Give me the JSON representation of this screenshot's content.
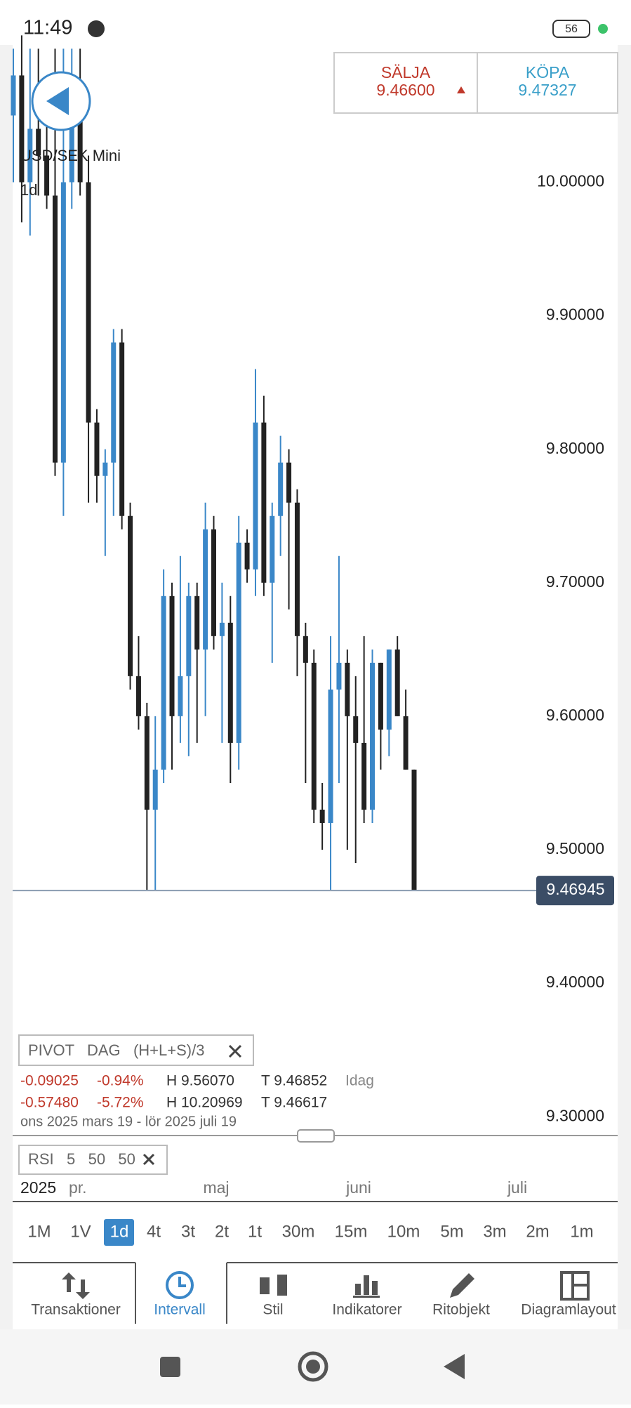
{
  "status_bar": {
    "time": "11:49",
    "battery": "56"
  },
  "quote": {
    "sell_label": "SÄLJA",
    "sell": "9.46600",
    "buy_label": "KÖPA",
    "buy": "9.47327"
  },
  "instrument": {
    "name": "USD/SEK Mini",
    "interval": "1d"
  },
  "chart_data": {
    "type": "candlestick",
    "open": [
      10.05,
      10.08,
      10.0,
      10.04,
      10.02,
      9.99,
      9.79,
      10.0,
      10.07,
      10.0,
      9.82,
      9.78,
      9.79,
      9.88,
      9.75,
      9.63,
      9.6,
      9.53,
      9.56,
      9.69,
      9.6,
      9.63,
      9.69,
      9.65,
      9.74,
      9.66,
      9.67,
      9.58,
      9.73,
      9.71,
      9.82,
      9.7,
      9.75,
      9.79,
      9.76,
      9.66,
      9.64,
      9.53,
      9.52,
      9.62,
      9.64,
      9.6,
      9.58,
      9.53,
      9.64,
      9.59,
      9.65,
      9.6,
      9.56
    ],
    "high": [
      10.1,
      10.11,
      10.1,
      10.1,
      10.05,
      10.1,
      10.1,
      10.1,
      10.1,
      10.02,
      9.83,
      9.8,
      9.89,
      9.89,
      9.76,
      9.66,
      9.61,
      9.6,
      9.71,
      9.7,
      9.72,
      9.7,
      9.7,
      9.76,
      9.75,
      9.7,
      9.69,
      9.75,
      9.74,
      9.86,
      9.84,
      9.76,
      9.81,
      9.8,
      9.77,
      9.67,
      9.65,
      9.55,
      9.66,
      9.72,
      9.65,
      9.63,
      9.66,
      9.65,
      9.64,
      9.65,
      9.66,
      9.62,
      9.56
    ],
    "low": [
      10.0,
      9.97,
      9.96,
      9.99,
      9.98,
      9.78,
      9.75,
      9.98,
      9.99,
      9.76,
      9.76,
      9.72,
      9.75,
      9.74,
      9.62,
      9.59,
      9.47,
      9.47,
      9.55,
      9.56,
      9.58,
      9.57,
      9.58,
      9.6,
      9.65,
      9.58,
      9.55,
      9.56,
      9.7,
      9.69,
      9.69,
      9.64,
      9.72,
      9.68,
      9.63,
      9.55,
      9.52,
      9.5,
      9.47,
      9.55,
      9.5,
      9.49,
      9.52,
      9.52,
      9.56,
      9.57,
      9.6,
      9.56,
      9.47
    ],
    "close": [
      10.08,
      10.0,
      10.04,
      10.02,
      9.99,
      9.79,
      10.0,
      10.07,
      10.0,
      9.82,
      9.78,
      9.79,
      9.88,
      9.75,
      9.63,
      9.6,
      9.53,
      9.56,
      9.69,
      9.6,
      9.63,
      9.69,
      9.65,
      9.74,
      9.66,
      9.67,
      9.58,
      9.73,
      9.71,
      9.82,
      9.7,
      9.75,
      9.79,
      9.76,
      9.66,
      9.64,
      9.53,
      9.52,
      9.62,
      9.64,
      9.6,
      9.58,
      9.53,
      9.64,
      9.59,
      9.65,
      9.6,
      9.56,
      9.47
    ],
    "up_color": "#3a87c8",
    "down_color": "#222222",
    "ylim": [
      9.288,
      10.096
    ],
    "yticks": [
      {
        "value": 9.3,
        "label": "9.30000"
      },
      {
        "value": 9.4,
        "label": "9.40000"
      },
      {
        "value": 9.5,
        "label": "9.50000"
      },
      {
        "value": 9.6,
        "label": "9.60000"
      },
      {
        "value": 9.7,
        "label": "9.70000"
      },
      {
        "value": 9.8,
        "label": "9.80000"
      },
      {
        "value": 9.9,
        "label": "9.90000"
      },
      {
        "value": 10,
        "label": "10.00000"
      }
    ],
    "last_price": {
      "value": 9.46945,
      "label": "9.46945"
    },
    "x_labels": [
      "2025",
      "pr.",
      "maj",
      "juni",
      "juli"
    ]
  },
  "pivot": {
    "header": "PIVOT   DAG   (H+L+S)/3",
    "rows": [
      [
        "-0.09025",
        "-0.94%",
        "H 9.56070",
        "T 9.46852",
        "Idag"
      ],
      [
        "-0.57480",
        "-5.72%",
        "H 10.20969",
        "T 9.46617"
      ]
    ],
    "range": "ons 2025 mars 19 - lör 2025 juli 19"
  },
  "rsi": {
    "header": "RSI   5   50   50"
  },
  "intervals": [
    "1M",
    "1V",
    "1d",
    "4t",
    "3t",
    "2t",
    "1t",
    "30m",
    "15m",
    "10m",
    "5m",
    "3m",
    "2m",
    "1m"
  ],
  "tabs": [
    "Transaktioner",
    "Intervall",
    "Stil",
    "Indikatorer",
    "Ritobjekt",
    "Diagramlayout"
  ]
}
